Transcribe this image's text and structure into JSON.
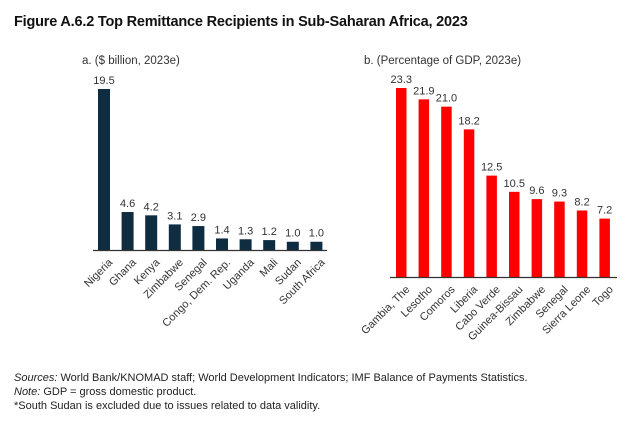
{
  "figure_title": "Figure A.6.2 Top Remittance Recipients in Sub-Saharan Africa, 2023",
  "chart_data": [
    {
      "type": "bar",
      "title": "a. ($ billion, 2023e)",
      "xlabel": "",
      "ylabel": "",
      "categories": [
        "Nigeria",
        "Ghana",
        "Kenya",
        "Zimbabwe",
        "Senegal",
        "Congo, Dem. Rep.",
        "Uganda",
        "Mali",
        "Sudan",
        "South Africa"
      ],
      "values": [
        19.5,
        4.6,
        4.2,
        3.1,
        2.9,
        1.4,
        1.3,
        1.2,
        1.0,
        1.0
      ],
      "value_labels": [
        "19.5",
        "4.6",
        "4.2",
        "3.1",
        "2.9",
        "1.4",
        "1.3",
        "1.2",
        "1.0",
        "1.0"
      ],
      "ylim": [
        0,
        19.5
      ],
      "grid": false,
      "color": "#0f2d40"
    },
    {
      "type": "bar",
      "title": "b. (Percentage of GDP, 2023e)",
      "xlabel": "",
      "ylabel": "",
      "categories": [
        "Gambia, The",
        "Lesotho",
        "Comoros",
        "Liberia",
        "Cabo Verde",
        "Guinea-Bissau",
        "Zimbabwe",
        "Senegal",
        "Sierra Leone",
        "Togo"
      ],
      "values": [
        23.3,
        21.9,
        21.0,
        18.2,
        12.5,
        10.5,
        9.6,
        9.3,
        8.2,
        7.2
      ],
      "value_labels": [
        "23.3",
        "21.9",
        "21.0",
        "18.2",
        "12.5",
        "10.5",
        "9.6",
        "9.3",
        "8.2",
        "7.2"
      ],
      "ylim": [
        0,
        23.3
      ],
      "grid": false,
      "color": "#ff0000"
    }
  ],
  "notes": {
    "sources_label": "Sources:",
    "sources_text": " World Bank/KNOMAD staff; World Development Indicators; IMF Balance of Payments Statistics.",
    "note_label": "Note:",
    "note_text": " GDP = gross domestic product.",
    "footnote": "*South Sudan is excluded due to issues related to data validity."
  }
}
